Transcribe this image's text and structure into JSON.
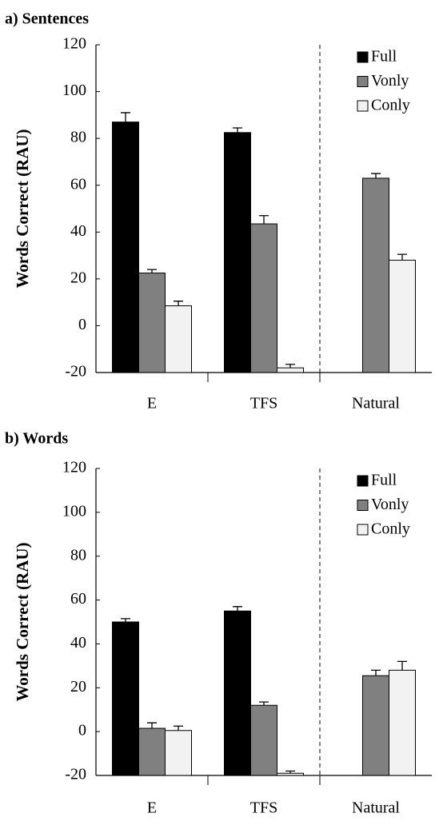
{
  "chart_data": [
    {
      "type": "bar",
      "title": "a) Sentences",
      "ylabel": "Words Correct (RAU)",
      "categories": [
        "E",
        "TFS",
        "Natural"
      ],
      "series": [
        {
          "name": "Full",
          "color": "#000000",
          "values": [
            87,
            82.5,
            null
          ],
          "errors": [
            4,
            2,
            null
          ]
        },
        {
          "name": "Vonly",
          "color": "#808080",
          "values": [
            22.5,
            43.5,
            63
          ],
          "errors": [
            1.5,
            3.5,
            2
          ]
        },
        {
          "name": "Conly",
          "color": "#f2f2f2",
          "values": [
            8.5,
            -18,
            28
          ],
          "errors": [
            2,
            1.5,
            2.5
          ]
        }
      ],
      "ylim": [
        -20,
        120
      ],
      "yticks": [
        -20,
        0,
        20,
        40,
        60,
        80,
        100,
        120
      ],
      "legend": "upper right"
    },
    {
      "type": "bar",
      "title": "b) Words",
      "ylabel": "Words Correct (RAU)",
      "categories": [
        "E",
        "TFS",
        "Natural"
      ],
      "series": [
        {
          "name": "Full",
          "color": "#000000",
          "values": [
            50,
            55,
            null
          ],
          "errors": [
            1.5,
            2,
            null
          ]
        },
        {
          "name": "Vonly",
          "color": "#808080",
          "values": [
            1.5,
            12,
            25.5
          ],
          "errors": [
            2.5,
            1.5,
            2.5
          ]
        },
        {
          "name": "Conly",
          "color": "#f2f2f2",
          "values": [
            0.5,
            -19,
            28
          ],
          "errors": [
            2,
            1,
            4
          ]
        }
      ],
      "ylim": [
        -20,
        120
      ],
      "yticks": [
        -20,
        0,
        20,
        40,
        60,
        80,
        100,
        120
      ],
      "legend": "upper right"
    }
  ]
}
